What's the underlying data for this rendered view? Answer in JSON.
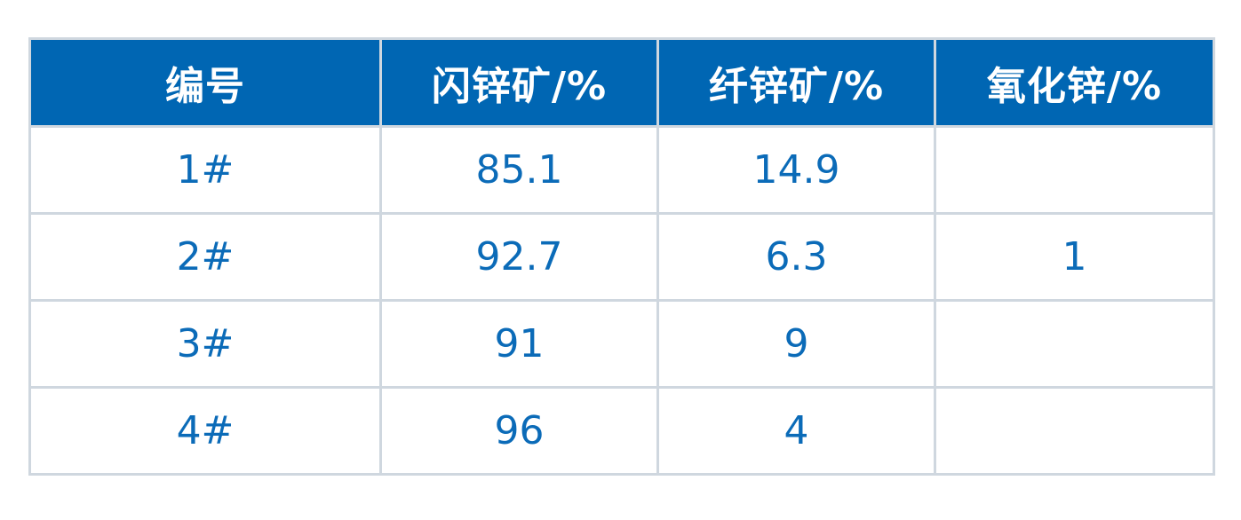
{
  "table": {
    "headers": [
      "编号",
      "闪锌矿/%",
      "纤锌矿/%",
      "氧化锌/%"
    ],
    "rows": [
      [
        "1#",
        "85.1",
        "14.9",
        ""
      ],
      [
        "2#",
        "92.7",
        "6.3",
        "1"
      ],
      [
        "3#",
        "91",
        "9",
        ""
      ],
      [
        "4#",
        "96",
        "4",
        ""
      ]
    ]
  },
  "colors": {
    "header_background": "#0066b3",
    "header_text": "#ffffff",
    "cell_text": "#0b6bb8",
    "border": "#cfd7df"
  }
}
